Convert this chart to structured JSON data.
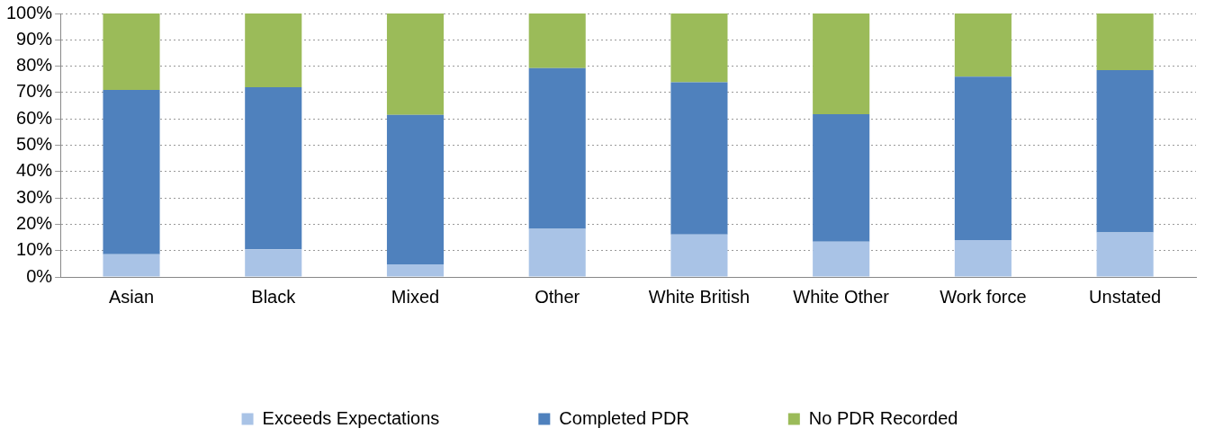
{
  "chart_data": {
    "type": "bar",
    "stacked": true,
    "categories": [
      "Asian",
      "Black",
      "Mixed",
      "Other",
      "White British",
      "White Other",
      "Work force",
      "Unstated"
    ],
    "series": [
      {
        "name": "Exceeds Expectations",
        "color": "#a9c3e6",
        "values": [
          8.6,
          10.5,
          4.8,
          18.3,
          16.1,
          13.4,
          14,
          16.9
        ]
      },
      {
        "name": "Completed PDR",
        "color": "#4f81bd",
        "values": [
          62.4,
          61.5,
          56.7,
          61,
          57.8,
          48.4,
          62,
          61.6
        ]
      },
      {
        "name": "No PDR Recorded",
        "color": "#9bbb59",
        "values": [
          29,
          28,
          38.5,
          20.7,
          26.1,
          38.2,
          24,
          21.5
        ]
      }
    ],
    "ylim": [
      0,
      100
    ],
    "yticks": [
      {
        "value": 0,
        "label": "0%"
      },
      {
        "value": 10,
        "label": "10%"
      },
      {
        "value": 20,
        "label": "20%"
      },
      {
        "value": 30,
        "label": "30%"
      },
      {
        "value": 40,
        "label": "40%"
      },
      {
        "value": 50,
        "label": "50%"
      },
      {
        "value": 60,
        "label": "60%"
      },
      {
        "value": 70,
        "label": "70%"
      },
      {
        "value": 80,
        "label": "80%"
      },
      {
        "value": 90,
        "label": "90%"
      },
      {
        "value": 100,
        "label": "100%"
      }
    ],
    "grid": "y",
    "legend": "bottom"
  }
}
